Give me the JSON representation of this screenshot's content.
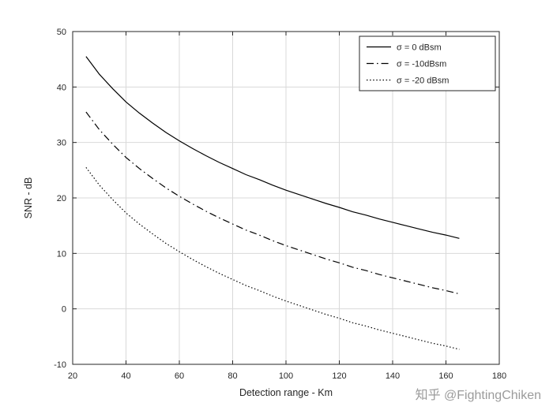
{
  "watermark": {
    "text": "知乎 @FightingChiken",
    "color": "#9b9b9b"
  },
  "colors": {
    "axis": "#262626",
    "grid": "#d9d9d9",
    "line": "#000000",
    "background": "#ffffff",
    "legend_border": "#262626"
  },
  "chart_data": {
    "type": "line",
    "title": "",
    "xlabel": "Detection range - Km",
    "ylabel": "SNR - dB",
    "xlim": [
      20,
      180
    ],
    "ylim": [
      -10,
      50
    ],
    "xticks": [
      20,
      40,
      60,
      80,
      100,
      120,
      140,
      160,
      180
    ],
    "yticks": [
      -10,
      0,
      10,
      20,
      30,
      40,
      50
    ],
    "grid": true,
    "legend_position": "top-right",
    "x": [
      25,
      30,
      35,
      40,
      45,
      50,
      55,
      60,
      65,
      70,
      75,
      80,
      85,
      90,
      95,
      100,
      105,
      110,
      115,
      120,
      125,
      130,
      135,
      140,
      145,
      150,
      155,
      160,
      165
    ],
    "series": [
      {
        "name": "σ = 0 dBsm",
        "line_style": "solid",
        "color": "#000000",
        "values": [
          45.5,
          42.3,
          39.7,
          37.3,
          35.3,
          33.5,
          31.8,
          30.3,
          28.9,
          27.6,
          26.4,
          25.3,
          24.2,
          23.3,
          22.3,
          21.4,
          20.6,
          19.8,
          19.0,
          18.3,
          17.5,
          16.9,
          16.2,
          15.6,
          15.0,
          14.4,
          13.8,
          13.3,
          12.7
        ]
      },
      {
        "name": "σ = -10dBsm",
        "line_style": "dashdot",
        "color": "#000000",
        "values": [
          35.5,
          32.3,
          29.7,
          27.3,
          25.3,
          23.5,
          21.8,
          20.3,
          18.9,
          17.6,
          16.4,
          15.3,
          14.2,
          13.3,
          12.3,
          11.4,
          10.6,
          9.8,
          9.0,
          8.3,
          7.5,
          6.9,
          6.2,
          5.6,
          5.0,
          4.4,
          3.8,
          3.3,
          2.7
        ]
      },
      {
        "name": "σ = -20 dBsm",
        "line_style": "dotted",
        "color": "#000000",
        "values": [
          25.5,
          22.3,
          19.7,
          17.3,
          15.3,
          13.5,
          11.8,
          10.3,
          8.9,
          7.6,
          6.4,
          5.3,
          4.2,
          3.3,
          2.3,
          1.4,
          0.6,
          -0.2,
          -1.0,
          -1.7,
          -2.5,
          -3.1,
          -3.8,
          -4.4,
          -5.0,
          -5.6,
          -6.2,
          -6.7,
          -7.3
        ]
      }
    ]
  }
}
